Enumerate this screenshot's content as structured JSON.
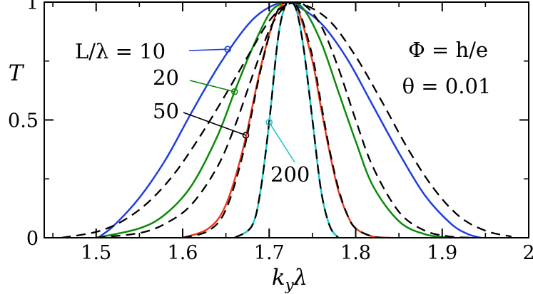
{
  "chart_data": {
    "type": "line",
    "xlabel": "k_y λ",
    "xlabel_parts": {
      "k": "k",
      "sub": "y",
      "lambda": "λ"
    },
    "ylabel": "T",
    "xlim": [
      1.44,
      2.0
    ],
    "ylim": [
      0,
      1
    ],
    "xticks": [
      1.5,
      1.6,
      1.7,
      1.8,
      1.9,
      2.0
    ],
    "xtick_labels": [
      "1.5",
      "1.6",
      "1.7",
      "1.8",
      "1.9",
      "2"
    ],
    "yticks": [
      0,
      0.5,
      1
    ],
    "ytick_labels": [
      "0",
      "0.5",
      "1"
    ],
    "grid": false,
    "annotations": {
      "phi": "Φ = h/e",
      "theta": "θ = 0.01",
      "L_prefix": "L/λ = ",
      "L10": "10",
      "L20": "20",
      "L50": "50",
      "L200": "200"
    },
    "series": [
      {
        "label": "10",
        "color": "#1f3fe0",
        "style": "solid",
        "x": [
          1.502,
          1.52,
          1.55,
          1.58,
          1.61,
          1.64,
          1.67,
          1.69,
          1.71,
          1.72,
          1.73,
          1.76,
          1.79,
          1.82,
          1.85,
          1.88,
          1.91,
          1.93,
          1.945
        ],
        "y": [
          0.0,
          0.05,
          0.17,
          0.33,
          0.53,
          0.72,
          0.88,
          0.955,
          0.995,
          1.0,
          0.99,
          0.91,
          0.76,
          0.56,
          0.36,
          0.18,
          0.06,
          0.015,
          0.0
        ]
      },
      {
        "label": "10 (dashed)",
        "color": "#000000",
        "style": "dashed",
        "x": [
          1.46,
          1.5,
          1.53,
          1.56,
          1.59,
          1.62,
          1.65,
          1.68,
          1.7,
          1.72,
          1.74,
          1.77,
          1.8,
          1.83,
          1.86,
          1.89,
          1.92,
          1.95,
          1.98
        ],
        "y": [
          0.0,
          0.025,
          0.07,
          0.15,
          0.27,
          0.43,
          0.61,
          0.8,
          0.92,
          0.99,
          0.99,
          0.92,
          0.77,
          0.58,
          0.38,
          0.21,
          0.09,
          0.03,
          0.005
        ]
      },
      {
        "label": "20",
        "color": "#0b8a0b",
        "style": "solid",
        "x": [
          1.5,
          1.55,
          1.58,
          1.61,
          1.64,
          1.66,
          1.68,
          1.7,
          1.715,
          1.725,
          1.74,
          1.76,
          1.78,
          1.8,
          1.82,
          1.85,
          1.88,
          1.91
        ],
        "y": [
          0.0,
          0.04,
          0.1,
          0.22,
          0.43,
          0.62,
          0.8,
          0.95,
          0.995,
          1.0,
          0.97,
          0.83,
          0.62,
          0.41,
          0.22,
          0.07,
          0.015,
          0.0
        ]
      },
      {
        "label": "20 (dashed)",
        "color": "#000000",
        "style": "dashed",
        "x": [
          1.5,
          1.55,
          1.58,
          1.61,
          1.64,
          1.66,
          1.68,
          1.7,
          1.715,
          1.725,
          1.74,
          1.76,
          1.78,
          1.8,
          1.82,
          1.85,
          1.88,
          1.91,
          1.94
        ],
        "y": [
          0.0,
          0.02,
          0.06,
          0.14,
          0.3,
          0.47,
          0.68,
          0.88,
          0.97,
          0.995,
          0.99,
          0.9,
          0.72,
          0.5,
          0.3,
          0.11,
          0.03,
          0.005,
          0.0
        ]
      },
      {
        "label": "50",
        "color": "#ee3b1d",
        "style": "solid",
        "x": [
          1.6,
          1.63,
          1.65,
          1.67,
          1.69,
          1.705,
          1.715,
          1.725,
          1.735,
          1.75,
          1.76,
          1.77,
          1.78,
          1.79,
          1.8,
          1.82,
          1.84
        ],
        "y": [
          0.0,
          0.04,
          0.14,
          0.38,
          0.72,
          0.92,
          0.99,
          1.0,
          0.95,
          0.75,
          0.55,
          0.36,
          0.2,
          0.1,
          0.04,
          0.005,
          0.0
        ]
      },
      {
        "label": "50 (dashed)",
        "color": "#000000",
        "style": "dashed",
        "x": [
          1.6,
          1.63,
          1.65,
          1.67,
          1.69,
          1.705,
          1.715,
          1.725,
          1.735,
          1.75,
          1.76,
          1.77,
          1.78,
          1.79,
          1.8,
          1.82,
          1.84
        ],
        "y": [
          0.0,
          0.03,
          0.12,
          0.36,
          0.71,
          0.92,
          0.99,
          1.0,
          0.96,
          0.77,
          0.57,
          0.37,
          0.21,
          0.1,
          0.04,
          0.005,
          0.0
        ]
      },
      {
        "label": "200",
        "color": "#1ec8c8",
        "style": "solid",
        "x": [
          1.66,
          1.68,
          1.69,
          1.7,
          1.71,
          1.718,
          1.725,
          1.732,
          1.74,
          1.75,
          1.76,
          1.77,
          1.78
        ],
        "y": [
          0.0,
          0.05,
          0.2,
          0.49,
          0.84,
          0.98,
          1.0,
          0.96,
          0.8,
          0.5,
          0.2,
          0.05,
          0.0
        ]
      },
      {
        "label": "200 (dashed)",
        "color": "#000000",
        "style": "dashed",
        "x": [
          1.66,
          1.68,
          1.69,
          1.7,
          1.71,
          1.718,
          1.725,
          1.732,
          1.74,
          1.75,
          1.76,
          1.77,
          1.78
        ],
        "y": [
          0.0,
          0.05,
          0.2,
          0.49,
          0.84,
          0.98,
          1.0,
          0.96,
          0.8,
          0.5,
          0.2,
          0.05,
          0.0
        ]
      }
    ],
    "markers": [
      {
        "label": "10",
        "color": "#1f3fe0",
        "x": 1.652,
        "y": 0.8
      },
      {
        "label": "20",
        "color": "#0b8a0b",
        "x": 1.66,
        "y": 0.62
      },
      {
        "label": "50",
        "color": "#000000",
        "x": 1.673,
        "y": 0.435
      },
      {
        "label": "200",
        "color": "#1ec8c8",
        "x": 1.7,
        "y": 0.49
      }
    ]
  }
}
